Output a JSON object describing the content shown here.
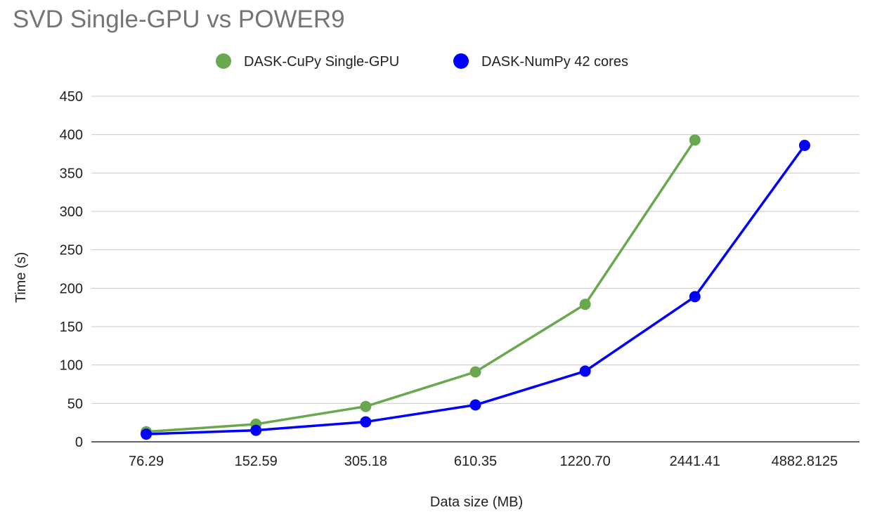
{
  "chart_data": {
    "type": "line",
    "title": "SVD Single-GPU vs POWER9",
    "xlabel": "Data size (MB)",
    "ylabel": "Time (s)",
    "categories": [
      "76.29",
      "152.59",
      "305.18",
      "610.35",
      "1220.70",
      "2441.41",
      "4882.8125"
    ],
    "ylim": [
      0,
      450
    ],
    "yticks": [
      0,
      50,
      100,
      150,
      200,
      250,
      300,
      350,
      400,
      450
    ],
    "grid": true,
    "legend_position": "top-center",
    "series": [
      {
        "name": "DASK-CuPy Single-GPU",
        "color": "#6aa84f",
        "values": [
          13,
          23,
          46,
          91,
          179,
          393,
          null
        ]
      },
      {
        "name": "DASK-NumPy 42 cores",
        "color": "#0000ff",
        "values": [
          10,
          15,
          26,
          48,
          92,
          189,
          386
        ]
      }
    ]
  }
}
